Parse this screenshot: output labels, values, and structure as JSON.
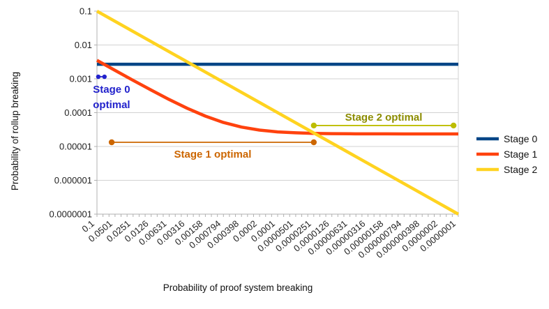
{
  "figure": {
    "background": "#ffffff"
  },
  "chart_data": {
    "type": "line",
    "title": "",
    "xlabel": "Probability of proof system breaking",
    "ylabel": "Probability of rollup breaking",
    "x_scale": "log",
    "y_scale": "log",
    "x_direction": "descending",
    "xlim": [
      0.1,
      1e-07
    ],
    "ylim": [
      0.1,
      1e-07
    ],
    "grid": "horizontal",
    "legend_position": "right",
    "x_tick_labels": [
      "0.1",
      "0.0501",
      "0.0251",
      "0.0126",
      "0.00631",
      "0.00316",
      "0.00158",
      "0.000794",
      "0.000398",
      "0.0002",
      "0.0001",
      "0.0000501",
      "0.0000251",
      "0.0000126",
      "0.00000631",
      "0.00000316",
      "0.00000158",
      "0.000000794",
      "0.000000398",
      "0.0000002",
      "0.0000001"
    ],
    "y_tick_labels": [
      "0.1",
      "0.01",
      "0.001",
      "0.0001",
      "0.00001",
      "0.000001",
      "0.0000001"
    ],
    "series": [
      {
        "name": "Stage 0",
        "color": "#004586",
        "points": [
          [
            0.1,
            0.0027
          ],
          [
            1e-07,
            0.0027
          ]
        ]
      },
      {
        "name": "Stage 1",
        "color": "#FF420E",
        "points": [
          [
            0.1,
            0.00352
          ],
          [
            0.0501,
            0.00178
          ],
          [
            0.0251,
            0.000902
          ],
          [
            0.0126,
            0.000465
          ],
          [
            0.00631,
            0.000244
          ],
          [
            0.00316,
            0.000134
          ],
          [
            0.00158,
            7.88e-05
          ],
          [
            0.000794,
            5.13e-05
          ],
          [
            0.000398,
            3.74e-05
          ],
          [
            0.0002,
            3.05e-05
          ],
          [
            0.0001,
            2.7e-05
          ],
          [
            5.01e-05,
            2.53e-05
          ],
          [
            2.51e-05,
            2.44e-05
          ],
          [
            1.26e-05,
            2.39e-05
          ],
          [
            6.31e-06,
            2.37e-05
          ],
          [
            3.16e-06,
            2.36e-05
          ],
          [
            1.58e-06,
            2.36e-05
          ],
          [
            7.94e-07,
            2.35e-05
          ],
          [
            3.98e-07,
            2.35e-05
          ],
          [
            2e-07,
            2.35e-05
          ],
          [
            1e-07,
            2.35e-05
          ]
        ]
      },
      {
        "name": "Stage 2",
        "color": "#FFD320",
        "points": [
          [
            0.1,
            0.1
          ],
          [
            1e-07,
            1e-07
          ]
        ]
      }
    ],
    "annotations": [
      {
        "id": "stage-0-optimal",
        "label": "Stage 0 optimal",
        "label_lines": [
          "Stage 0",
          "optimal"
        ],
        "color": "#2222CC",
        "x_start": 0.095,
        "x_end": 0.075,
        "y": 0.00115,
        "label_placement": "below"
      },
      {
        "id": "stage-1-optimal",
        "label": "Stage 1 optimal",
        "color": "#CC6600",
        "x_start": 0.057,
        "x_end": 2.51e-05,
        "y": 1.33e-05,
        "label_placement": "below"
      },
      {
        "id": "stage-2-optimal",
        "label": "Stage 2 optimal",
        "color": "#8C8C00",
        "line_color": "#BDBD00",
        "x_start": 2.51e-05,
        "x_end": 1.2e-07,
        "y": 4.17e-05,
        "label_placement": "above"
      }
    ],
    "style": {
      "grid_color": "#d2d2d2",
      "axis_color": "#b0b0b0",
      "tick_color": "#222222",
      "title_color": "#111111"
    }
  }
}
